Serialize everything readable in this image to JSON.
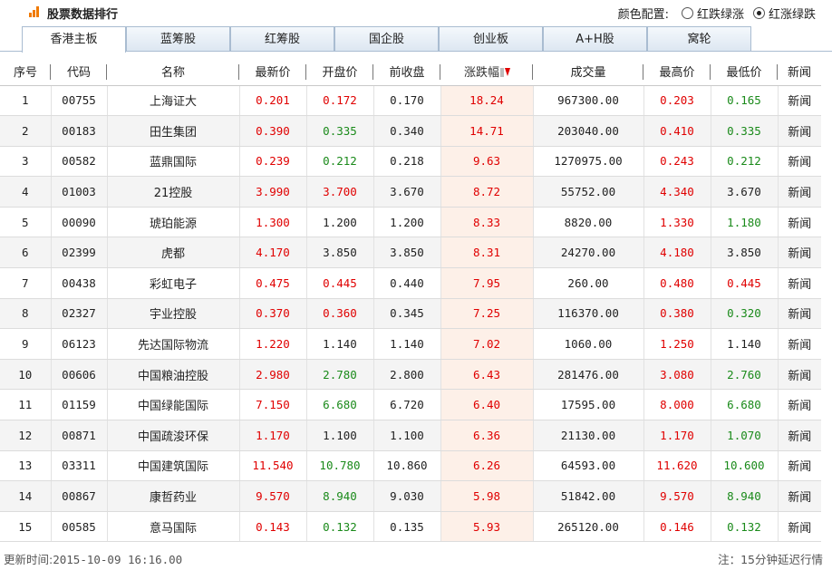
{
  "header": {
    "title": "股票数据排行",
    "color_config_label": "颜色配置:",
    "options": [
      {
        "label": "红跌绿涨",
        "checked": false
      },
      {
        "label": "红涨绿跌",
        "checked": true
      }
    ]
  },
  "tabs": [
    {
      "label": "香港主板",
      "active": true
    },
    {
      "label": "蓝筹股",
      "active": false
    },
    {
      "label": "红筹股",
      "active": false
    },
    {
      "label": "国企股",
      "active": false
    },
    {
      "label": "创业板",
      "active": false
    },
    {
      "label": "A+H股",
      "active": false
    },
    {
      "label": "窝轮",
      "active": false
    }
  ],
  "table": {
    "columns": [
      "序号",
      "代码",
      "名称",
      "最新价",
      "开盘价",
      "前收盘",
      "涨跌幅",
      "成交量",
      "最高价",
      "最低价",
      "新闻"
    ],
    "news_label": "新闻",
    "rows": [
      {
        "no": "1",
        "code": "00755",
        "name": "上海证大",
        "last": "0.201",
        "open": "0.172",
        "prev": "0.170",
        "chg": "18.24",
        "vol": "967300.00",
        "high": "0.203",
        "low": "0.165"
      },
      {
        "no": "2",
        "code": "00183",
        "name": "田生集团",
        "last": "0.390",
        "open": "0.335",
        "prev": "0.340",
        "chg": "14.71",
        "vol": "203040.00",
        "high": "0.410",
        "low": "0.335"
      },
      {
        "no": "3",
        "code": "00582",
        "name": "蓝鼎国际",
        "last": "0.239",
        "open": "0.212",
        "prev": "0.218",
        "chg": "9.63",
        "vol": "1270975.00",
        "high": "0.243",
        "low": "0.212"
      },
      {
        "no": "4",
        "code": "01003",
        "name": "21控股",
        "last": "3.990",
        "open": "3.700",
        "prev": "3.670",
        "chg": "8.72",
        "vol": "55752.00",
        "high": "4.340",
        "low": "3.670"
      },
      {
        "no": "5",
        "code": "00090",
        "name": "琥珀能源",
        "last": "1.300",
        "open": "1.200",
        "prev": "1.200",
        "chg": "8.33",
        "vol": "8820.00",
        "high": "1.330",
        "low": "1.180"
      },
      {
        "no": "6",
        "code": "02399",
        "name": "虎都",
        "last": "4.170",
        "open": "3.850",
        "prev": "3.850",
        "chg": "8.31",
        "vol": "24270.00",
        "high": "4.180",
        "low": "3.850"
      },
      {
        "no": "7",
        "code": "00438",
        "name": "彩虹电子",
        "last": "0.475",
        "open": "0.445",
        "prev": "0.440",
        "chg": "7.95",
        "vol": "260.00",
        "high": "0.480",
        "low": "0.445"
      },
      {
        "no": "8",
        "code": "02327",
        "name": "宇业控股",
        "last": "0.370",
        "open": "0.360",
        "prev": "0.345",
        "chg": "7.25",
        "vol": "116370.00",
        "high": "0.380",
        "low": "0.320"
      },
      {
        "no": "9",
        "code": "06123",
        "name": "先达国际物流",
        "last": "1.220",
        "open": "1.140",
        "prev": "1.140",
        "chg": "7.02",
        "vol": "1060.00",
        "high": "1.250",
        "low": "1.140"
      },
      {
        "no": "10",
        "code": "00606",
        "name": "中国粮油控股",
        "last": "2.980",
        "open": "2.780",
        "prev": "2.800",
        "chg": "6.43",
        "vol": "281476.00",
        "high": "3.080",
        "low": "2.760"
      },
      {
        "no": "11",
        "code": "01159",
        "name": "中国绿能国际",
        "last": "7.150",
        "open": "6.680",
        "prev": "6.720",
        "chg": "6.40",
        "vol": "17595.00",
        "high": "8.000",
        "low": "6.680"
      },
      {
        "no": "12",
        "code": "00871",
        "name": "中国疏浚环保",
        "last": "1.170",
        "open": "1.100",
        "prev": "1.100",
        "chg": "6.36",
        "vol": "21130.00",
        "high": "1.170",
        "low": "1.070"
      },
      {
        "no": "13",
        "code": "03311",
        "name": "中国建筑国际",
        "last": "11.540",
        "open": "10.780",
        "prev": "10.860",
        "chg": "6.26",
        "vol": "64593.00",
        "high": "11.620",
        "low": "10.600"
      },
      {
        "no": "14",
        "code": "00867",
        "name": "康哲药业",
        "last": "9.570",
        "open": "8.940",
        "prev": "9.030",
        "chg": "5.98",
        "vol": "51842.00",
        "high": "9.570",
        "low": "8.940"
      },
      {
        "no": "15",
        "code": "00585",
        "name": "意马国际",
        "last": "0.143",
        "open": "0.132",
        "prev": "0.135",
        "chg": "5.93",
        "vol": "265120.00",
        "high": "0.146",
        "low": "0.132"
      }
    ]
  },
  "footer": {
    "update_label": "更新时间:",
    "update_time": "2015-10-09 16:16.00",
    "note": "注：15分钟延迟行情"
  },
  "colors": {
    "up": "#e00000",
    "down": "#1a8a1a",
    "accent": "#f07a00",
    "highlight_column": "#fdf0e8"
  },
  "icons": {
    "title_icon": "bar-chart-icon",
    "sort_icon": "sort-desc-icon"
  }
}
